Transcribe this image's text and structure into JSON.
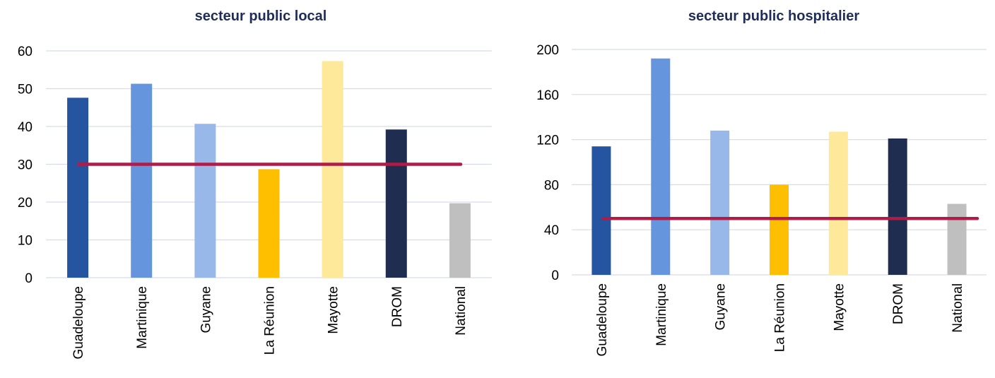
{
  "chart_data": [
    {
      "type": "bar",
      "title": "secteur public local",
      "categories": [
        "Guadeloupe",
        "Martinique",
        "Guyane",
        "La Réunion",
        "Mayotte",
        "DROM",
        "National"
      ],
      "values": [
        47.6,
        51.3,
        40.7,
        28.7,
        57.3,
        39.2,
        19.7
      ],
      "bar_colors": [
        "#2554a0",
        "#6495dd",
        "#98b8e9",
        "#fdbf00",
        "#fee89a",
        "#1f2d50",
        "#bfbfbf"
      ],
      "yticks": [
        "0",
        "10",
        "20",
        "30",
        "40",
        "50",
        "60"
      ],
      "ylim": [
        0,
        60
      ],
      "reference_line": {
        "value": 30,
        "color": "#b01c47"
      },
      "grid": true,
      "gridline_color": "#d6dcea"
    },
    {
      "type": "bar",
      "title": "secteur public hospitalier",
      "categories": [
        "Guadeloupe",
        "Martinique",
        "Guyane",
        "La Réunion",
        "Mayotte",
        "DROM",
        "National"
      ],
      "values": [
        114,
        192,
        128,
        80,
        127,
        121,
        63
      ],
      "bar_colors": [
        "#2554a0",
        "#6495dd",
        "#98b8e9",
        "#fdbf00",
        "#fee89a",
        "#1f2d50",
        "#bfbfbf"
      ],
      "yticks": [
        "0",
        "40",
        "80",
        "120",
        "160",
        "200"
      ],
      "ylim": [
        0,
        200
      ],
      "reference_line": {
        "value": 50,
        "color": "#b01c47"
      },
      "grid": true,
      "gridline_color": "#d6dcea"
    }
  ]
}
